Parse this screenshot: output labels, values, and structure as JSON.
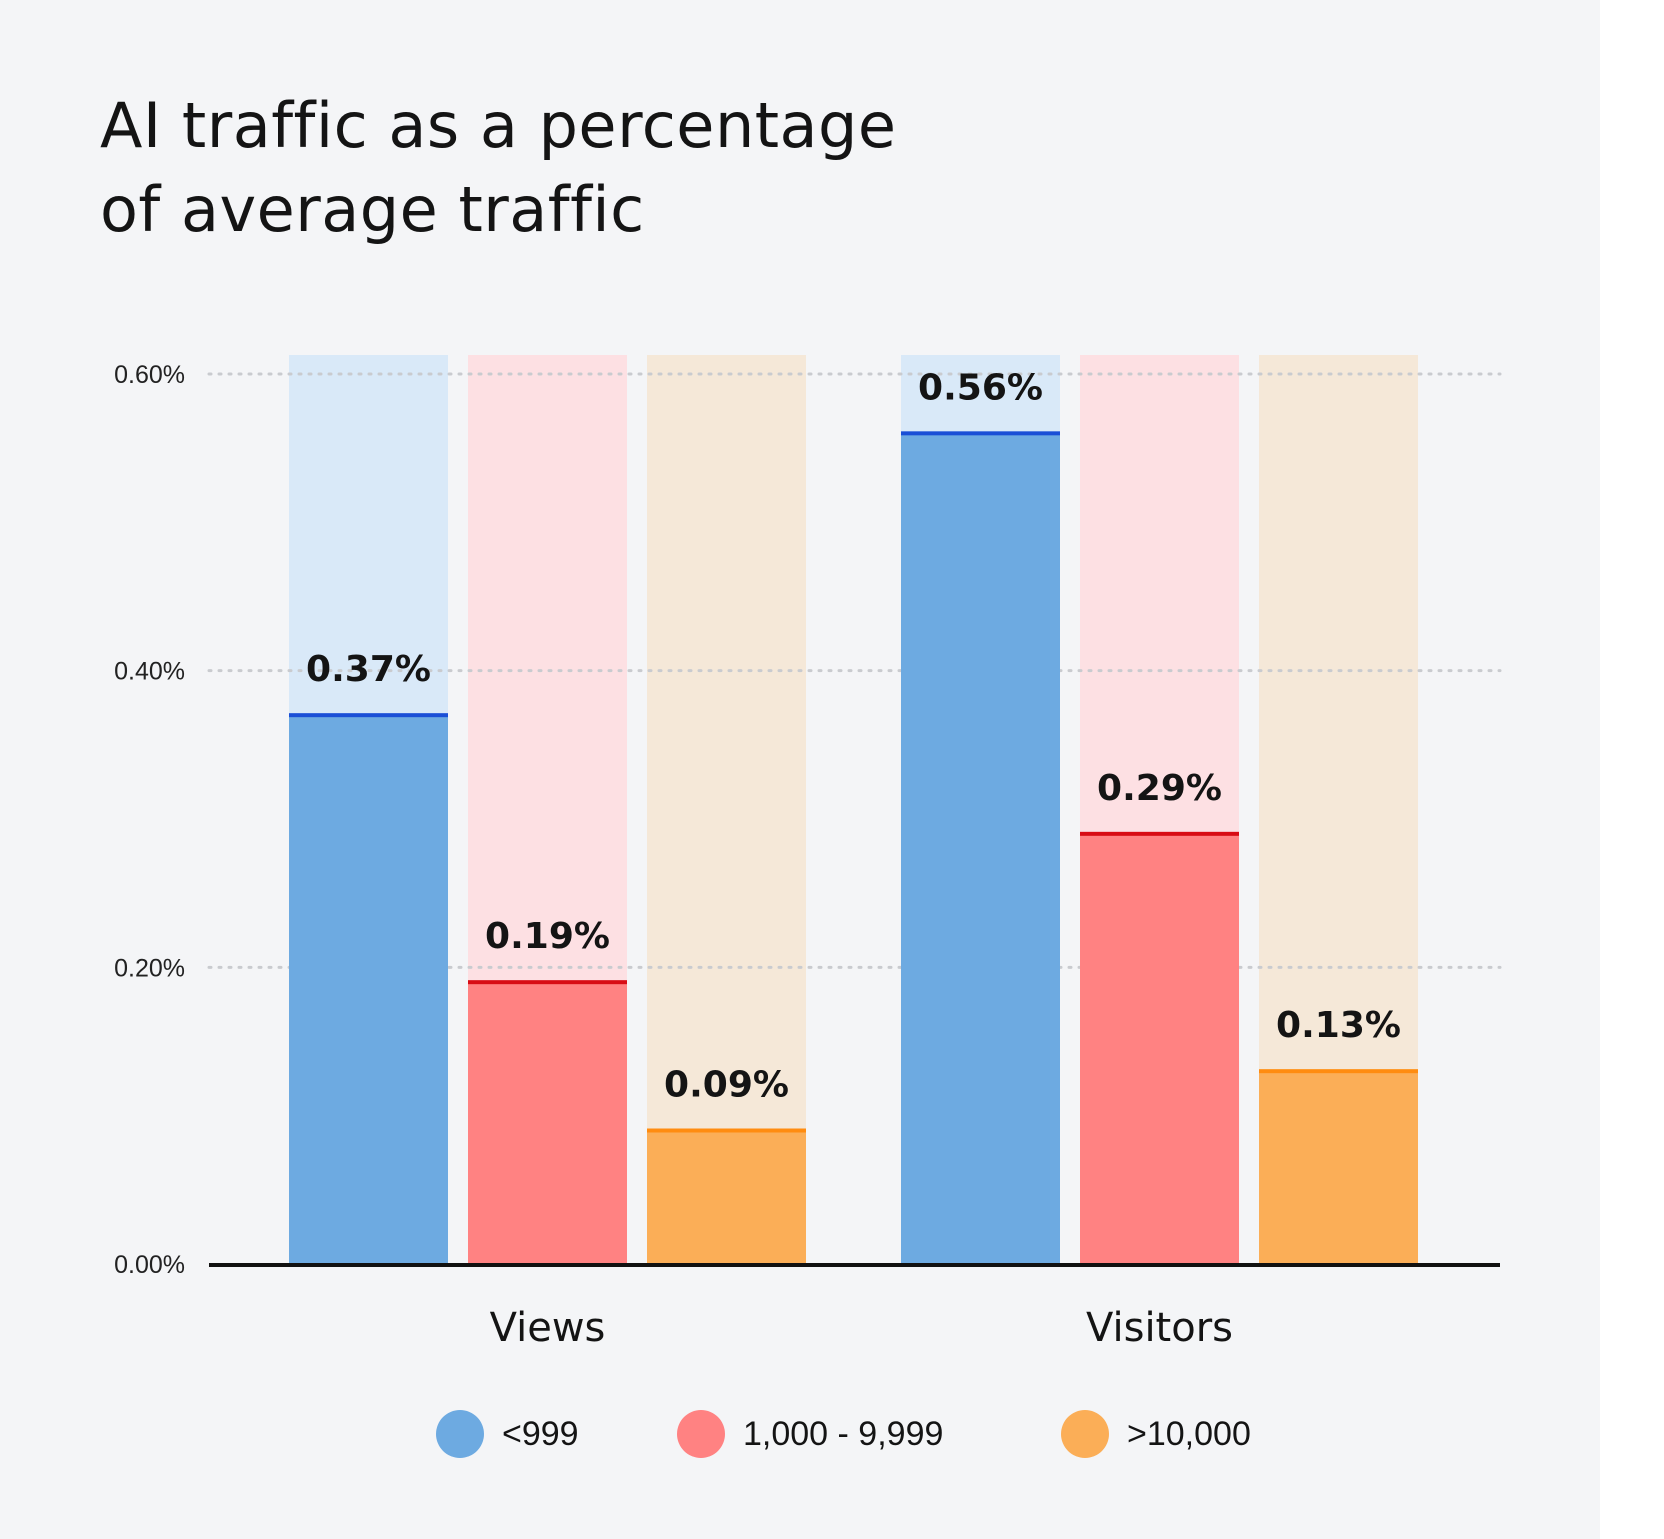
{
  "chart_data": {
    "type": "bar",
    "title": "AI traffic as a percentage of average traffic",
    "title_lines": [
      "AI traffic as a percentage",
      "of average traffic"
    ],
    "categories": [
      "Views",
      "Visitors"
    ],
    "series": [
      {
        "name": "<999",
        "values": [
          0.37,
          0.56
        ],
        "labels": [
          "0.37%",
          "0.56%"
        ],
        "color": "#6daae1",
        "light": "#d9e9f8",
        "edge": "#1a4fd6"
      },
      {
        "name": "1,000 - 9,999",
        "values": [
          0.19,
          0.29
        ],
        "labels": [
          "0.19%",
          "0.29%"
        ],
        "color": "#ff8282",
        "light": "#fde0e3",
        "edge": "#d80c14"
      },
      {
        "name": ">10,000",
        "values": [
          0.09,
          0.13
        ],
        "labels": [
          "0.09%",
          "0.13%"
        ],
        "color": "#fbae57",
        "light": "#f5e8d8",
        "edge": "#ff8c10"
      }
    ],
    "yticks": [
      0,
      0.2,
      0.4,
      0.6
    ],
    "ytick_labels": [
      "0.00%",
      "0.20%",
      "0.40%",
      "0.60%"
    ],
    "ylim": [
      0,
      0.6
    ],
    "grid": "horizontal dotted",
    "legend_position": "bottom-center",
    "xlabel": "",
    "ylabel": ""
  }
}
